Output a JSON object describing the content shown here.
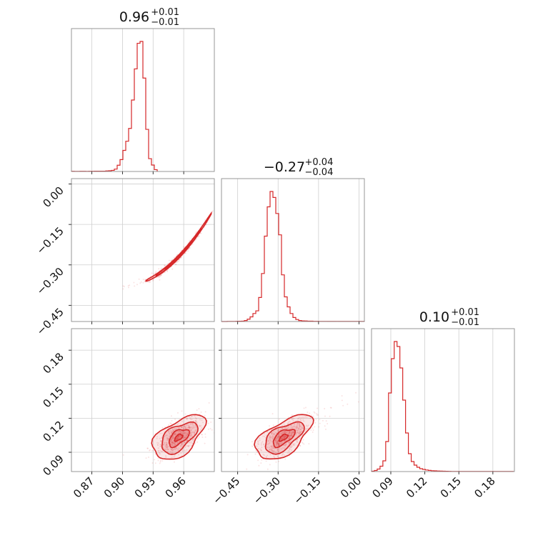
{
  "chart_data": {
    "type": "corner",
    "color": "#d62728",
    "grid": true,
    "parameters": [
      {
        "median": "0.96",
        "plus": "+0.01",
        "minus": "−0.01",
        "range": [
          0.85,
          0.99
        ],
        "ticks": [
          0.87,
          0.9,
          0.93,
          0.96
        ],
        "tick_labels": [
          "0.87",
          "0.90",
          "0.93",
          "0.96"
        ]
      },
      {
        "median": "−0.27",
        "plus": "+0.04",
        "minus": "−0.04",
        "range": [
          -0.51,
          0.02
        ],
        "ticks": [
          -0.45,
          -0.3,
          -0.15,
          0.0
        ],
        "tick_labels": [
          "−0.45",
          "−0.30",
          "−0.15",
          "0.00"
        ]
      },
      {
        "median": "0.10",
        "plus": "+0.01",
        "minus": "−0.01",
        "range": [
          0.073,
          0.199
        ],
        "ticks": [
          0.09,
          0.12,
          0.15,
          0.18
        ],
        "tick_labels": [
          "0.09",
          "0.12",
          "0.15",
          "0.18"
        ]
      }
    ],
    "histograms": [
      {
        "param": 0,
        "bin_start": 0.85,
        "bin_width": 0.0028,
        "counts": [
          2,
          1,
          1,
          2,
          2,
          1,
          2,
          2,
          3,
          3,
          3,
          3,
          6,
          8,
          12,
          26,
          68,
          130,
          230,
          330,
          470,
          780,
          1120,
          1400,
          1420,
          1020,
          460,
          140,
          70,
          20
        ]
      },
      {
        "param": 1,
        "bin_start": -0.51,
        "bin_width": 0.0106,
        "counts": [
          0,
          0,
          1,
          1,
          2,
          3,
          4,
          6,
          15,
          35,
          70,
          120,
          160,
          360,
          720,
          1280,
          1720,
          1950,
          1860,
          1620,
          1300,
          700,
          370,
          220,
          120,
          60,
          30,
          15,
          10,
          8,
          6,
          5,
          3,
          3,
          2,
          2,
          2,
          1,
          1,
          1,
          2,
          1,
          1,
          1,
          1,
          1,
          1,
          1,
          1,
          1
        ]
      },
      {
        "param": 2,
        "bin_start": 0.073,
        "bin_width": 0.0025,
        "counts": [
          5,
          15,
          35,
          75,
          150,
          420,
          1100,
          1580,
          1820,
          1750,
          1450,
          1000,
          540,
          250,
          140,
          90,
          60,
          40,
          30,
          22,
          16,
          12,
          10,
          8,
          6,
          5,
          4,
          3,
          2,
          2,
          2,
          1,
          1,
          1,
          1,
          1,
          1,
          1,
          1,
          1,
          1,
          1,
          1,
          1,
          1,
          1,
          1,
          1,
          1,
          1
        ]
      }
    ],
    "scatter_pairs": [
      {
        "x_param": 0,
        "y_param": 1,
        "relation": "curved ridge",
        "contours_center": [
          0.955,
          -0.27
        ],
        "samples_extent_x": [
          0.85,
          0.99
        ]
      },
      {
        "x_param": 0,
        "y_param": 2,
        "relation": "positive correlation",
        "contours_center": [
          0.955,
          0.103
        ]
      },
      {
        "x_param": 1,
        "y_param": 2,
        "relation": "positive correlation",
        "contours_center": [
          -0.28,
          0.103
        ]
      }
    ]
  }
}
